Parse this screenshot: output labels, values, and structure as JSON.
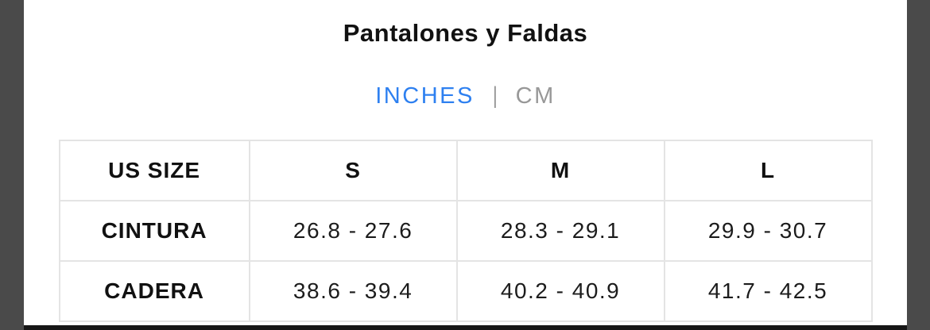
{
  "title": "Pantalones y Faldas",
  "unit_toggle": {
    "inches_label": "INCHES",
    "divider": "|",
    "cm_label": "CM",
    "active_unit": "INCHES",
    "active_color": "#2e80f0",
    "inactive_color": "#989898"
  },
  "table": {
    "headers": [
      "US SIZE",
      "S",
      "M",
      "L"
    ],
    "rows": [
      {
        "label": "CINTURA",
        "values": [
          "26.8 - 27.6",
          "28.3 - 29.1",
          "29.9 - 30.7"
        ]
      },
      {
        "label": "CADERA",
        "values": [
          "38.6 - 39.4",
          "40.2 - 40.9",
          "41.7 - 42.5"
        ]
      }
    ]
  },
  "colors": {
    "edge_panel": "#4a4a4a",
    "table_border": "#e4e4e4",
    "bottom_bar": "#161616",
    "text": "#111111"
  }
}
